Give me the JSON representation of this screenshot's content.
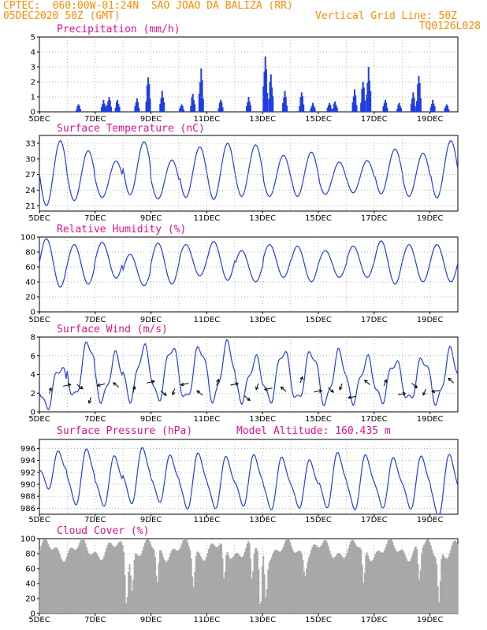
{
  "header": {
    "line1_left": "CPTEC:  060:00W-01:24N  SAO JOAO DA BALIZA (RR)",
    "line2_left": "05DEC2020 50Z (GMT)",
    "line2_right": "Vertical Grid Line: 50Z",
    "line3_right": "TQ0126L028"
  },
  "colors": {
    "header": "#ff8c00",
    "title": "#e0138c",
    "line": "#1f3fe0",
    "cloud": "#a8a8a8",
    "grid": "#999999"
  },
  "chart_data": [
    {
      "type": "bar",
      "title": "Precipitation (mm/h)",
      "ylim": [
        0,
        5
      ],
      "yticks": [
        0,
        1,
        2,
        3,
        4,
        5
      ],
      "xticks": [
        "5DEC",
        "7DEC",
        "9DEC",
        "11DEC",
        "13DEC",
        "15DEC",
        "17DEC",
        "19DEC"
      ],
      "x_day_range": [
        5,
        20
      ],
      "events": [
        {
          "day": 6.4,
          "peak": 0.5
        },
        {
          "day": 7.3,
          "peak": 0.8
        },
        {
          "day": 7.5,
          "peak": 1.0
        },
        {
          "day": 7.8,
          "peak": 0.8
        },
        {
          "day": 8.5,
          "peak": 0.9
        },
        {
          "day": 8.9,
          "peak": 2.3
        },
        {
          "day": 9.4,
          "peak": 1.4
        },
        {
          "day": 10.1,
          "peak": 0.5
        },
        {
          "day": 10.5,
          "peak": 1.2
        },
        {
          "day": 10.8,
          "peak": 2.9
        },
        {
          "day": 11.5,
          "peak": 0.8
        },
        {
          "day": 12.5,
          "peak": 1.0
        },
        {
          "day": 13.1,
          "peak": 3.7
        },
        {
          "day": 13.3,
          "peak": 2.5
        },
        {
          "day": 13.8,
          "peak": 1.4
        },
        {
          "day": 14.4,
          "peak": 1.3
        },
        {
          "day": 14.8,
          "peak": 0.6
        },
        {
          "day": 15.4,
          "peak": 0.6
        },
        {
          "day": 15.6,
          "peak": 0.7
        },
        {
          "day": 16.3,
          "peak": 1.5
        },
        {
          "day": 16.6,
          "peak": 2.0
        },
        {
          "day": 16.8,
          "peak": 3.0
        },
        {
          "day": 17.4,
          "peak": 0.8
        },
        {
          "day": 17.9,
          "peak": 0.6
        },
        {
          "day": 18.4,
          "peak": 1.3
        },
        {
          "day": 18.6,
          "peak": 2.4
        },
        {
          "day": 19.1,
          "peak": 0.8
        },
        {
          "day": 19.6,
          "peak": 0.5
        }
      ]
    },
    {
      "type": "line",
      "title": "Surface Temperature (nC)",
      "ylim": [
        20,
        34.5
      ],
      "yticks": [
        21,
        24,
        27,
        30,
        33
      ],
      "xticks": [
        "5DEC",
        "7DEC",
        "9DEC",
        "11DEC",
        "13DEC",
        "15DEC",
        "17DEC",
        "19DEC"
      ],
      "x_day_range": [
        5,
        20
      ],
      "minima": [
        21.0,
        22.0,
        22.6,
        23.1,
        22.3,
        22.6,
        22.2,
        22.8,
        22.8,
        22.8,
        23.2,
        23.5,
        23.3,
        22.8,
        22.5
      ],
      "maxima": [
        33.5,
        31.6,
        29.6,
        33.3,
        29.8,
        32.3,
        33.0,
        32.7,
        30.7,
        31.3,
        29.4,
        29.7,
        31.9,
        31.1,
        33.5
      ]
    },
    {
      "type": "line",
      "title": "Relative Humidity (%)",
      "ylim": [
        0,
        100
      ],
      "yticks": [
        0,
        20,
        40,
        60,
        80,
        100
      ],
      "xticks": [
        "5DEC",
        "7DEC",
        "9DEC",
        "11DEC",
        "13DEC",
        "15DEC",
        "17DEC",
        "19DEC"
      ],
      "x_day_range": [
        5,
        20
      ],
      "minima": [
        33,
        37,
        45,
        35,
        37,
        48,
        42,
        40,
        46,
        40,
        46,
        46,
        37,
        40,
        40
      ],
      "maxima": [
        98,
        90,
        93,
        77,
        92,
        90,
        94,
        82,
        90,
        88,
        82,
        88,
        95,
        90,
        90
      ]
    },
    {
      "type": "line",
      "title": "Surface Wind (m/s)",
      "ylim": [
        0,
        8
      ],
      "yticks": [
        0,
        2,
        4,
        6,
        8
      ],
      "xticks": [
        "5DEC",
        "7DEC",
        "9DEC",
        "11DEC",
        "13DEC",
        "15DEC",
        "17DEC",
        "19DEC"
      ],
      "x_day_range": [
        5,
        20
      ],
      "minima": [
        0.5,
        1.5,
        1.3,
        1.5,
        1.4,
        1.3,
        1.3,
        1.4,
        1.2,
        1.2,
        1.0,
        1.3,
        1.2,
        1.2,
        1.0
      ],
      "maxima": [
        4.8,
        7.4,
        6.0,
        6.8,
        6.9,
        6.9,
        7.2,
        5.6,
        6.5,
        6.4,
        6.3,
        5.6,
        5.4,
        5.7,
        6.5
      ]
    },
    {
      "type": "line",
      "title": "Surface Pressure (hPa)",
      "annotation": "Model Altitude: 160.435 m",
      "ylim": [
        985,
        997.5
      ],
      "yticks": [
        986,
        988,
        990,
        992,
        994,
        996
      ],
      "xticks": [
        "5DEC",
        "7DEC",
        "9DEC",
        "11DEC",
        "13DEC",
        "15DEC",
        "17DEC",
        "19DEC"
      ],
      "x_day_range": [
        5,
        20
      ],
      "minima": [
        989.8,
        987.0,
        986.8,
        987.2,
        987.5,
        986.3,
        986.4,
        986.8,
        986.2,
        986.5,
        986.5,
        986.2,
        986.5,
        986.3,
        985.0
      ],
      "maxima": [
        995.0,
        995.5,
        994.3,
        995.7,
        994.4,
        994.8,
        994.2,
        994.5,
        994.1,
        993.6,
        994.9,
        994.5,
        994.0,
        994.3,
        994.6
      ]
    },
    {
      "type": "bar",
      "title": "Cloud Cover (%)",
      "ylim": [
        0,
        100
      ],
      "yticks": [
        0,
        20,
        40,
        60,
        80,
        100
      ],
      "xticks": [
        "5DEC",
        "7DEC",
        "9DEC",
        "11DEC",
        "13DEC",
        "15DEC",
        "17DEC",
        "19DEC"
      ],
      "x_day_range": [
        5,
        20
      ],
      "typical_percent": 85,
      "dips": [
        {
          "day": 8.1,
          "value": 10
        },
        {
          "day": 8.3,
          "value": 30
        },
        {
          "day": 9.2,
          "value": 40
        },
        {
          "day": 10.5,
          "value": 35
        },
        {
          "day": 11.6,
          "value": 45
        },
        {
          "day": 12.6,
          "value": 45
        },
        {
          "day": 12.9,
          "value": 5
        },
        {
          "day": 13.1,
          "value": 20
        },
        {
          "day": 14.5,
          "value": 50
        },
        {
          "day": 16.6,
          "value": 40
        },
        {
          "day": 18.6,
          "value": 45
        },
        {
          "day": 19.3,
          "value": 15
        }
      ]
    }
  ]
}
